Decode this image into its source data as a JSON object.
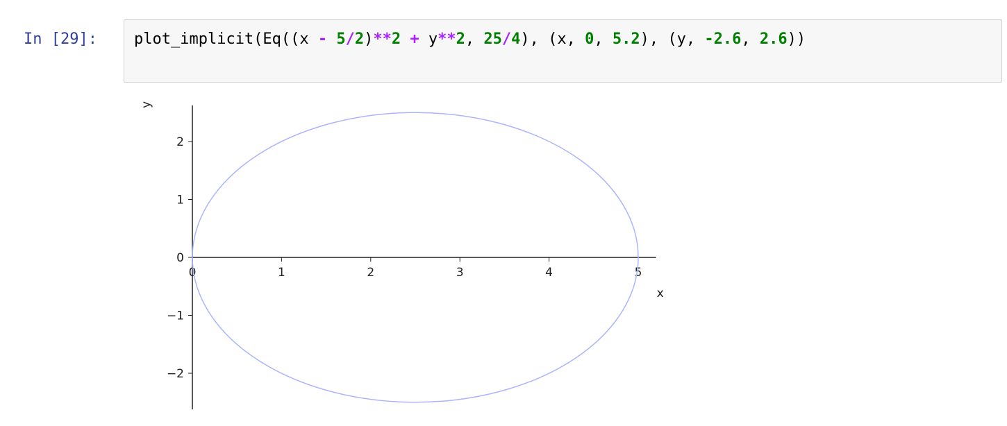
{
  "cell": {
    "prompt": "In [29]:",
    "code_tokens": [
      {
        "t": "plot_implicit(Eq((x ",
        "c": "plain"
      },
      {
        "t": "-",
        "c": "op"
      },
      {
        "t": " ",
        "c": "plain"
      },
      {
        "t": "5",
        "c": "num"
      },
      {
        "t": "/",
        "c": "op"
      },
      {
        "t": "2",
        "c": "num"
      },
      {
        "t": ")",
        "c": "plain"
      },
      {
        "t": "**",
        "c": "op"
      },
      {
        "t": "2",
        "c": "num"
      },
      {
        "t": " ",
        "c": "plain"
      },
      {
        "t": "+",
        "c": "op"
      },
      {
        "t": " y",
        "c": "plain"
      },
      {
        "t": "**",
        "c": "op"
      },
      {
        "t": "2",
        "c": "num"
      },
      {
        "t": ", ",
        "c": "plain"
      },
      {
        "t": "25",
        "c": "num"
      },
      {
        "t": "/",
        "c": "op"
      },
      {
        "t": "4",
        "c": "num"
      },
      {
        "t": "), (x, ",
        "c": "plain"
      },
      {
        "t": "0",
        "c": "num"
      },
      {
        "t": ", ",
        "c": "plain"
      },
      {
        "t": "5.2",
        "c": "num"
      },
      {
        "t": "), (y, ",
        "c": "plain"
      },
      {
        "t": "-2.6",
        "c": "num"
      },
      {
        "t": ", ",
        "c": "plain"
      },
      {
        "t": "2.6",
        "c": "num"
      },
      {
        "t": "))",
        "c": "plain"
      }
    ]
  },
  "chart_data": {
    "type": "line",
    "xlabel": "x",
    "ylabel": "y",
    "xlim": [
      0,
      5.2
    ],
    "ylim": [
      -2.6,
      2.6
    ],
    "x_ticks": [
      0,
      1,
      2,
      3,
      4,
      5
    ],
    "y_ticks": [
      -2,
      -1,
      0,
      1,
      2
    ],
    "x_tick_labels": [
      "0",
      "1",
      "2",
      "3",
      "4",
      "5"
    ],
    "y_tick_labels": [
      "−2",
      "−1",
      "0",
      "1",
      "2"
    ],
    "grid": false,
    "series": [
      {
        "curve": "circle",
        "center": [
          2.5,
          0
        ],
        "radius": 2.5,
        "color": "#aab4ff"
      }
    ]
  }
}
